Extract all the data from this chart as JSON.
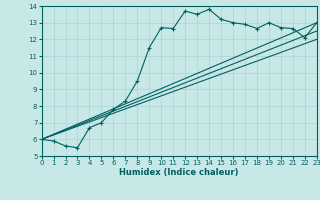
{
  "xlabel": "Humidex (Indice chaleur)",
  "xlim": [
    0,
    23
  ],
  "ylim": [
    5,
    14
  ],
  "xticks": [
    0,
    1,
    2,
    3,
    4,
    5,
    6,
    7,
    8,
    9,
    10,
    11,
    12,
    13,
    14,
    15,
    16,
    17,
    18,
    19,
    20,
    21,
    22,
    23
  ],
  "yticks": [
    5,
    6,
    7,
    8,
    9,
    10,
    11,
    12,
    13,
    14
  ],
  "bg_color": "#c8e8e8",
  "line_color": "#006060",
  "grid_color": "#aad4d4",
  "series": [
    {
      "x": [
        0,
        1,
        2,
        3,
        4,
        5,
        6,
        7,
        8,
        9,
        10,
        11,
        12,
        13,
        14,
        15,
        16,
        17,
        18,
        19,
        20,
        21,
        22,
        23
      ],
      "y": [
        6.0,
        5.9,
        5.6,
        5.5,
        6.7,
        7.0,
        7.8,
        8.3,
        9.5,
        11.5,
        12.7,
        12.65,
        13.7,
        13.5,
        13.8,
        13.2,
        13.0,
        12.9,
        12.65,
        13.0,
        12.7,
        12.65,
        12.1,
        13.0
      ],
      "marker": true
    },
    {
      "x": [
        0,
        23
      ],
      "y": [
        6.0,
        13.0
      ],
      "marker": false
    },
    {
      "x": [
        0,
        23
      ],
      "y": [
        6.0,
        12.5
      ],
      "marker": false
    },
    {
      "x": [
        0,
        23
      ],
      "y": [
        6.0,
        12.0
      ],
      "marker": false
    }
  ]
}
